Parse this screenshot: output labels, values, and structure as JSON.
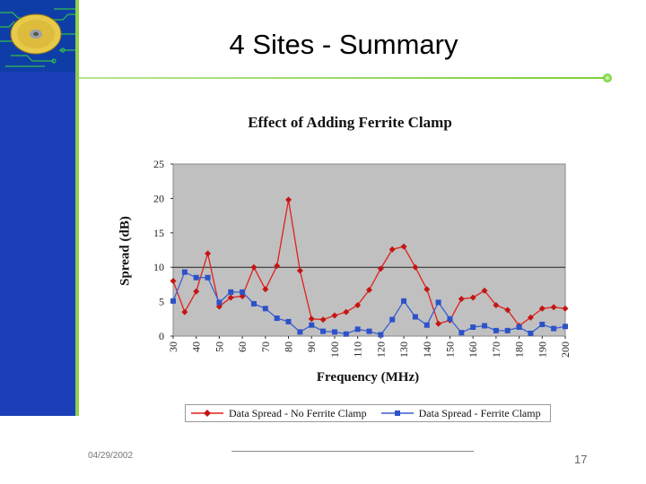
{
  "slide": {
    "title": "4 Sites - Summary",
    "date": "04/29/2002",
    "page_number": "17"
  },
  "colors": {
    "sidebar": "#1a3fb8",
    "accent_green": "#8fd14a",
    "plot_bg": "#c0c0c0",
    "series_red": "#e0201c",
    "series_blue": "#3a5fd0"
  },
  "chart_data": {
    "type": "line",
    "title": "Effect of Adding Ferrite Clamp",
    "xlabel": "Frequency (MHz)",
    "ylabel": "Spread (dB)",
    "x": [
      30,
      35,
      40,
      45,
      50,
      55,
      60,
      65,
      70,
      75,
      80,
      85,
      90,
      95,
      100,
      105,
      110,
      115,
      120,
      125,
      130,
      135,
      140,
      145,
      150,
      155,
      160,
      165,
      170,
      175,
      180,
      185,
      190,
      195,
      200
    ],
    "x_ticks": [
      30,
      40,
      50,
      60,
      70,
      80,
      90,
      100,
      110,
      120,
      130,
      140,
      150,
      160,
      170,
      180,
      190,
      200
    ],
    "y_ticks": [
      0,
      5,
      10,
      15,
      20,
      25
    ],
    "xlim": [
      30,
      200
    ],
    "ylim": [
      0,
      25
    ],
    "grid": "horizontal",
    "legend_position": "bottom",
    "series": [
      {
        "name": "Data Spread - No Ferrite Clamp",
        "color": "#e0201c",
        "marker": "diamond",
        "values": [
          8,
          3.5,
          6.5,
          12,
          4.3,
          5.6,
          5.8,
          10,
          6.8,
          10.2,
          19.8,
          9.5,
          2.5,
          2.4,
          3,
          3.5,
          4.5,
          6.7,
          9.8,
          12.6,
          13,
          10,
          6.8,
          1.8,
          2.3,
          5.4,
          5.6,
          6.6,
          4.5,
          3.8,
          1.5,
          2.7,
          4,
          4.2,
          4
        ]
      },
      {
        "name": "Data Spread - Ferrite Clamp",
        "color": "#3a5fd0",
        "marker": "square",
        "values": [
          5.1,
          9.3,
          8.5,
          8.5,
          4.9,
          6.4,
          6.4,
          4.7,
          4,
          2.6,
          2.1,
          0.6,
          1.6,
          0.7,
          0.6,
          0.3,
          1,
          0.7,
          0.2,
          2.4,
          5.1,
          2.8,
          1.6,
          4.9,
          2.5,
          0.5,
          1.3,
          1.5,
          0.8,
          0.8,
          1.3,
          0.4,
          1.7,
          1.1,
          1.4
        ]
      }
    ]
  }
}
